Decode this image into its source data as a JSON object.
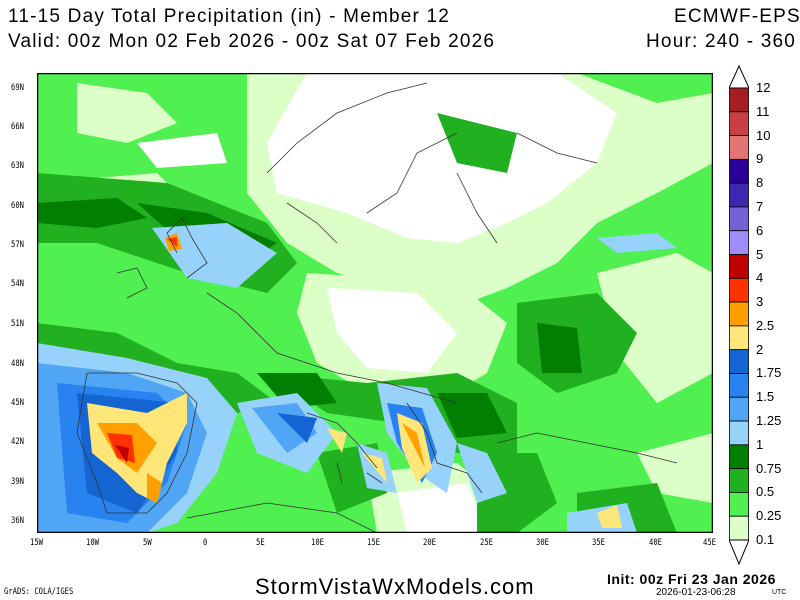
{
  "header": {
    "title": "11-15 Day Total Precipitation (in) - Member 12",
    "model": "ECMWF-EPS",
    "valid": "Valid: 00z Mon 02 Feb 2026 - 00z Sat 07 Feb 2026",
    "hour": "Hour: 240 - 360"
  },
  "map": {
    "variable": "total precipitation",
    "units": "in",
    "lon_range": [
      -15,
      45
    ],
    "lat_range": [
      35,
      70
    ],
    "lat_labels": [
      "69N",
      "66N",
      "63N",
      "60N",
      "57N",
      "54N",
      "51N",
      "48N",
      "45N",
      "42N",
      "39N",
      "36N"
    ],
    "lon_labels": [
      "15W",
      "10W",
      "5W",
      "0",
      "5E",
      "10E",
      "15E",
      "20E",
      "25E",
      "30E",
      "35E",
      "40E",
      "45E"
    ]
  },
  "colorbar": {
    "levels": [
      "12",
      "11",
      "10",
      "9",
      "8",
      "7",
      "6",
      "5",
      "4",
      "3",
      "2.5",
      "2",
      "1.75",
      "1.5",
      "1.25",
      "1",
      "0.75",
      "0.5",
      "0.25",
      "0.1"
    ],
    "colors": [
      "#a61e22",
      "#c8403f",
      "#e47474",
      "#2a0099",
      "#3c28b0",
      "#7462d8",
      "#a08cfc",
      "#c00000",
      "#ff3200",
      "#ffa000",
      "#ffe678",
      "#1464d2",
      "#2882f0",
      "#50a5f5",
      "#96d2fa",
      "#007f00",
      "#20b020",
      "#50f050",
      "#dcffc8"
    ]
  },
  "footer": {
    "grads": "GrADS: COLA/IGES",
    "site": "StormVistaWxModels.com",
    "init": "Init: 00z Fri 23 Jan 2026",
    "stamp": "2026-01-23-06:28",
    "utc": "UTC"
  }
}
